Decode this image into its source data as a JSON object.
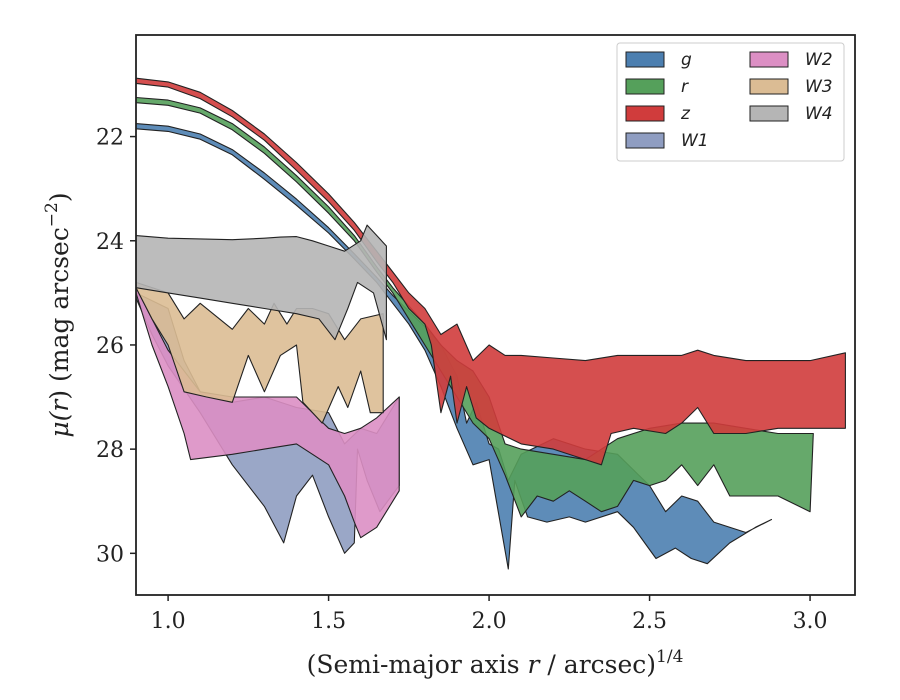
{
  "chart_data": {
    "type": "area",
    "xlabel": "(Semi-major axis r / arcsec)^1/4",
    "xlabel_main": "(Semi-major axis ",
    "xlabel_var": "r",
    "xlabel_tail": " / arcsec)",
    "xlabel_exp": "1/4",
    "ylabel": "μ(r) (mag arcsec⁻²)",
    "ylabel_main": "μ(",
    "ylabel_var": "r",
    "ylabel_mid": ") (mag arcsec",
    "ylabel_exp": "−2",
    "ylabel_end": ")",
    "xlim": [
      0.9,
      3.14
    ],
    "ylim": [
      30.8,
      20.05
    ],
    "y_inverted": true,
    "xticks": [
      1.0,
      1.5,
      2.0,
      2.5,
      3.0
    ],
    "xtick_labels": [
      "1.0",
      "1.5",
      "2.0",
      "2.5",
      "3.0"
    ],
    "yticks": [
      22,
      24,
      26,
      28,
      30
    ],
    "ytick_labels": [
      "22",
      "24",
      "26",
      "28",
      "30"
    ],
    "grid": false,
    "legend_position": "top-right",
    "legend_columns": 2,
    "series": [
      {
        "name": "g",
        "color": "#4c7fb0",
        "upper": [
          [
            0.9,
            21.75
          ],
          [
            1.0,
            21.8
          ],
          [
            1.1,
            21.95
          ],
          [
            1.2,
            22.25
          ],
          [
            1.3,
            22.7
          ],
          [
            1.4,
            23.2
          ],
          [
            1.5,
            23.75
          ],
          [
            1.58,
            24.25
          ],
          [
            1.65,
            24.7
          ],
          [
            1.7,
            25.05
          ],
          [
            1.75,
            25.35
          ],
          [
            1.8,
            25.65
          ],
          [
            1.85,
            26.0
          ],
          [
            1.9,
            26.6
          ],
          [
            1.93,
            27.5
          ],
          [
            1.96,
            27.1
          ],
          [
            2.0,
            27.9
          ],
          [
            2.03,
            28.0
          ],
          [
            2.06,
            28.6
          ],
          [
            2.1,
            28.1
          ],
          [
            2.2,
            27.8
          ],
          [
            2.3,
            28.0
          ],
          [
            2.4,
            28.1
          ],
          [
            2.45,
            28.4
          ],
          [
            2.5,
            28.7
          ],
          [
            2.55,
            29.2
          ],
          [
            2.6,
            28.9
          ],
          [
            2.65,
            29.0
          ],
          [
            2.7,
            29.4
          ],
          [
            2.8,
            29.6
          ],
          [
            2.88,
            29.35
          ]
        ],
        "lower": [
          [
            0.9,
            21.85
          ],
          [
            1.0,
            21.9
          ],
          [
            1.1,
            22.05
          ],
          [
            1.2,
            22.35
          ],
          [
            1.3,
            22.82
          ],
          [
            1.4,
            23.32
          ],
          [
            1.5,
            23.85
          ],
          [
            1.58,
            24.35
          ],
          [
            1.65,
            24.8
          ],
          [
            1.7,
            25.2
          ],
          [
            1.75,
            25.6
          ],
          [
            1.8,
            26.1
          ],
          [
            1.85,
            26.8
          ],
          [
            1.9,
            27.6
          ],
          [
            1.95,
            28.3
          ],
          [
            2.0,
            28.2
          ],
          [
            2.02,
            28.9
          ],
          [
            2.06,
            30.3
          ],
          [
            2.08,
            28.6
          ],
          [
            2.12,
            29.3
          ],
          [
            2.18,
            29.4
          ],
          [
            2.25,
            29.3
          ],
          [
            2.3,
            29.4
          ],
          [
            2.4,
            29.2
          ],
          [
            2.45,
            29.5
          ],
          [
            2.52,
            30.1
          ],
          [
            2.58,
            29.9
          ],
          [
            2.63,
            30.1
          ],
          [
            2.68,
            30.2
          ],
          [
            2.75,
            29.8
          ],
          [
            2.83,
            29.5
          ],
          [
            2.88,
            29.35
          ]
        ]
      },
      {
        "name": "r",
        "color": "#55a05b",
        "upper": [
          [
            0.9,
            21.25
          ],
          [
            1.0,
            21.3
          ],
          [
            1.1,
            21.45
          ],
          [
            1.2,
            21.75
          ],
          [
            1.3,
            22.2
          ],
          [
            1.4,
            22.75
          ],
          [
            1.5,
            23.35
          ],
          [
            1.58,
            23.9
          ],
          [
            1.65,
            24.5
          ],
          [
            1.7,
            24.9
          ],
          [
            1.75,
            25.25
          ],
          [
            1.8,
            25.6
          ],
          [
            1.85,
            26.0
          ],
          [
            1.9,
            26.3
          ],
          [
            1.95,
            26.5
          ],
          [
            2.0,
            27.0
          ],
          [
            2.05,
            27.9
          ],
          [
            2.1,
            28.0
          ],
          [
            2.2,
            28.1
          ],
          [
            2.3,
            28.2
          ],
          [
            2.4,
            27.8
          ],
          [
            2.5,
            27.6
          ],
          [
            2.6,
            27.5
          ],
          [
            2.7,
            27.5
          ],
          [
            2.8,
            27.6
          ],
          [
            2.9,
            27.7
          ],
          [
            3.01,
            27.7
          ]
        ],
        "lower": [
          [
            0.9,
            21.35
          ],
          [
            1.0,
            21.4
          ],
          [
            1.1,
            21.55
          ],
          [
            1.2,
            21.87
          ],
          [
            1.3,
            22.32
          ],
          [
            1.4,
            22.87
          ],
          [
            1.5,
            23.47
          ],
          [
            1.58,
            24.0
          ],
          [
            1.65,
            24.6
          ],
          [
            1.7,
            25.0
          ],
          [
            1.75,
            25.5
          ],
          [
            1.8,
            26.0
          ],
          [
            1.85,
            26.5
          ],
          [
            1.9,
            27.0
          ],
          [
            1.95,
            27.5
          ],
          [
            2.0,
            27.8
          ],
          [
            2.05,
            28.5
          ],
          [
            2.1,
            29.3
          ],
          [
            2.15,
            28.9
          ],
          [
            2.2,
            29.0
          ],
          [
            2.25,
            28.8
          ],
          [
            2.3,
            29.0
          ],
          [
            2.35,
            29.2
          ],
          [
            2.4,
            29.1
          ],
          [
            2.45,
            28.6
          ],
          [
            2.5,
            28.7
          ],
          [
            2.55,
            28.6
          ],
          [
            2.6,
            28.3
          ],
          [
            2.65,
            28.7
          ],
          [
            2.7,
            28.3
          ],
          [
            2.75,
            28.9
          ],
          [
            2.9,
            28.9
          ],
          [
            3.0,
            29.2
          ],
          [
            3.01,
            27.7
          ]
        ]
      },
      {
        "name": "z",
        "color": "#d03c3c",
        "upper": [
          [
            0.9,
            20.88
          ],
          [
            1.0,
            20.95
          ],
          [
            1.1,
            21.15
          ],
          [
            1.2,
            21.5
          ],
          [
            1.3,
            21.95
          ],
          [
            1.4,
            22.5
          ],
          [
            1.5,
            23.1
          ],
          [
            1.58,
            23.65
          ],
          [
            1.65,
            24.2
          ],
          [
            1.7,
            24.6
          ],
          [
            1.75,
            25.0
          ],
          [
            1.8,
            25.3
          ],
          [
            1.85,
            25.8
          ],
          [
            1.9,
            25.6
          ],
          [
            1.95,
            26.3
          ],
          [
            2.0,
            26.0
          ],
          [
            2.05,
            26.2
          ],
          [
            2.1,
            26.2
          ],
          [
            2.2,
            26.25
          ],
          [
            2.3,
            26.3
          ],
          [
            2.4,
            26.2
          ],
          [
            2.5,
            26.2
          ],
          [
            2.6,
            26.2
          ],
          [
            2.65,
            26.1
          ],
          [
            2.7,
            26.2
          ],
          [
            2.8,
            26.3
          ],
          [
            2.9,
            26.3
          ],
          [
            3.0,
            26.3
          ],
          [
            3.11,
            26.15
          ]
        ],
        "lower": [
          [
            0.9,
            20.98
          ],
          [
            1.0,
            21.05
          ],
          [
            1.1,
            21.27
          ],
          [
            1.2,
            21.62
          ],
          [
            1.3,
            22.07
          ],
          [
            1.4,
            22.65
          ],
          [
            1.5,
            23.25
          ],
          [
            1.58,
            23.8
          ],
          [
            1.65,
            24.4
          ],
          [
            1.7,
            24.8
          ],
          [
            1.75,
            25.3
          ],
          [
            1.8,
            25.6
          ],
          [
            1.82,
            26.0
          ],
          [
            1.85,
            27.3
          ],
          [
            1.88,
            26.6
          ],
          [
            1.9,
            27.5
          ],
          [
            1.93,
            26.8
          ],
          [
            1.96,
            27.4
          ],
          [
            2.0,
            27.6
          ],
          [
            2.1,
            27.9
          ],
          [
            2.2,
            28.0
          ],
          [
            2.3,
            28.2
          ],
          [
            2.35,
            28.3
          ],
          [
            2.38,
            27.7
          ],
          [
            2.45,
            27.6
          ],
          [
            2.55,
            27.7
          ],
          [
            2.6,
            27.5
          ],
          [
            2.65,
            27.2
          ],
          [
            2.7,
            27.7
          ],
          [
            2.8,
            27.7
          ],
          [
            2.9,
            27.6
          ],
          [
            3.0,
            27.6
          ],
          [
            3.11,
            27.6
          ]
        ]
      },
      {
        "name": "W1",
        "color": "#8f9dc1",
        "upper": [
          [
            0.9,
            25.0
          ],
          [
            1.0,
            25.3
          ],
          [
            1.05,
            26.3
          ],
          [
            1.1,
            26.9
          ],
          [
            1.2,
            27.1
          ],
          [
            1.3,
            27.0
          ],
          [
            1.4,
            27.2
          ],
          [
            1.5,
            27.3
          ],
          [
            1.55,
            27.9
          ],
          [
            1.6,
            27.6
          ],
          [
            1.65,
            27.7
          ],
          [
            1.72,
            27.0
          ]
        ],
        "lower": [
          [
            0.9,
            25.1
          ],
          [
            0.95,
            25.8
          ],
          [
            1.0,
            26.4
          ],
          [
            1.1,
            27.3
          ],
          [
            1.2,
            28.3
          ],
          [
            1.3,
            29.1
          ],
          [
            1.36,
            29.8
          ],
          [
            1.4,
            28.9
          ],
          [
            1.45,
            28.5
          ],
          [
            1.5,
            29.3
          ],
          [
            1.55,
            30.0
          ],
          [
            1.58,
            29.8
          ],
          [
            1.59,
            28.0
          ],
          [
            1.62,
            28.6
          ],
          [
            1.66,
            29.2
          ],
          [
            1.72,
            28.7
          ]
        ]
      },
      {
        "name": "W2",
        "color": "#dc8fc4",
        "upper": [
          [
            0.9,
            24.9
          ],
          [
            1.0,
            26.1
          ],
          [
            1.1,
            26.9
          ],
          [
            1.2,
            27.0
          ],
          [
            1.3,
            27.0
          ],
          [
            1.4,
            27.0
          ],
          [
            1.5,
            27.6
          ],
          [
            1.55,
            27.7
          ],
          [
            1.6,
            27.6
          ],
          [
            1.65,
            27.4
          ],
          [
            1.72,
            27.0
          ]
        ],
        "lower": [
          [
            0.9,
            25.0
          ],
          [
            0.95,
            26.0
          ],
          [
            1.0,
            26.8
          ],
          [
            1.05,
            27.7
          ],
          [
            1.07,
            28.2
          ],
          [
            1.2,
            28.1
          ],
          [
            1.3,
            28.0
          ],
          [
            1.4,
            27.9
          ],
          [
            1.45,
            28.1
          ],
          [
            1.5,
            28.3
          ],
          [
            1.55,
            28.9
          ],
          [
            1.58,
            29.4
          ],
          [
            1.6,
            29.7
          ],
          [
            1.65,
            29.5
          ],
          [
            1.72,
            28.8
          ]
        ]
      },
      {
        "name": "W3",
        "color": "#dbbc94",
        "upper": [
          [
            0.9,
            24.8
          ],
          [
            1.0,
            25.0
          ],
          [
            1.05,
            25.5
          ],
          [
            1.1,
            25.2
          ],
          [
            1.2,
            25.7
          ],
          [
            1.25,
            25.3
          ],
          [
            1.3,
            25.6
          ],
          [
            1.33,
            25.2
          ],
          [
            1.37,
            25.6
          ],
          [
            1.4,
            25.3
          ],
          [
            1.45,
            25.3
          ],
          [
            1.5,
            25.4
          ],
          [
            1.55,
            25.9
          ],
          [
            1.6,
            25.5
          ],
          [
            1.67,
            25.4
          ]
        ],
        "lower": [
          [
            0.9,
            24.9
          ],
          [
            0.95,
            25.5
          ],
          [
            1.0,
            26.0
          ],
          [
            1.05,
            26.9
          ],
          [
            1.12,
            27.0
          ],
          [
            1.2,
            27.1
          ],
          [
            1.25,
            26.2
          ],
          [
            1.3,
            26.9
          ],
          [
            1.35,
            26.2
          ],
          [
            1.4,
            26.0
          ],
          [
            1.42,
            27.1
          ],
          [
            1.48,
            27.5
          ],
          [
            1.53,
            26.8
          ],
          [
            1.56,
            27.2
          ],
          [
            1.6,
            26.5
          ],
          [
            1.63,
            27.3
          ],
          [
            1.67,
            27.3
          ]
        ]
      },
      {
        "name": "W4",
        "color": "#b5b5b5",
        "upper": [
          [
            0.9,
            23.9
          ],
          [
            1.0,
            23.95
          ],
          [
            1.2,
            23.98
          ],
          [
            1.3,
            23.95
          ],
          [
            1.35,
            23.93
          ],
          [
            1.4,
            23.92
          ],
          [
            1.45,
            24.0
          ],
          [
            1.5,
            24.1
          ],
          [
            1.55,
            24.2
          ],
          [
            1.6,
            24.0
          ],
          [
            1.62,
            23.7
          ],
          [
            1.68,
            24.1
          ]
        ],
        "lower": [
          [
            0.9,
            24.9
          ],
          [
            1.0,
            25.0
          ],
          [
            1.1,
            25.1
          ],
          [
            1.2,
            25.2
          ],
          [
            1.3,
            25.3
          ],
          [
            1.4,
            25.4
          ],
          [
            1.47,
            25.5
          ],
          [
            1.52,
            25.9
          ],
          [
            1.56,
            25.3
          ],
          [
            1.59,
            24.8
          ],
          [
            1.64,
            25.0
          ],
          [
            1.68,
            25.9
          ]
        ]
      }
    ]
  }
}
